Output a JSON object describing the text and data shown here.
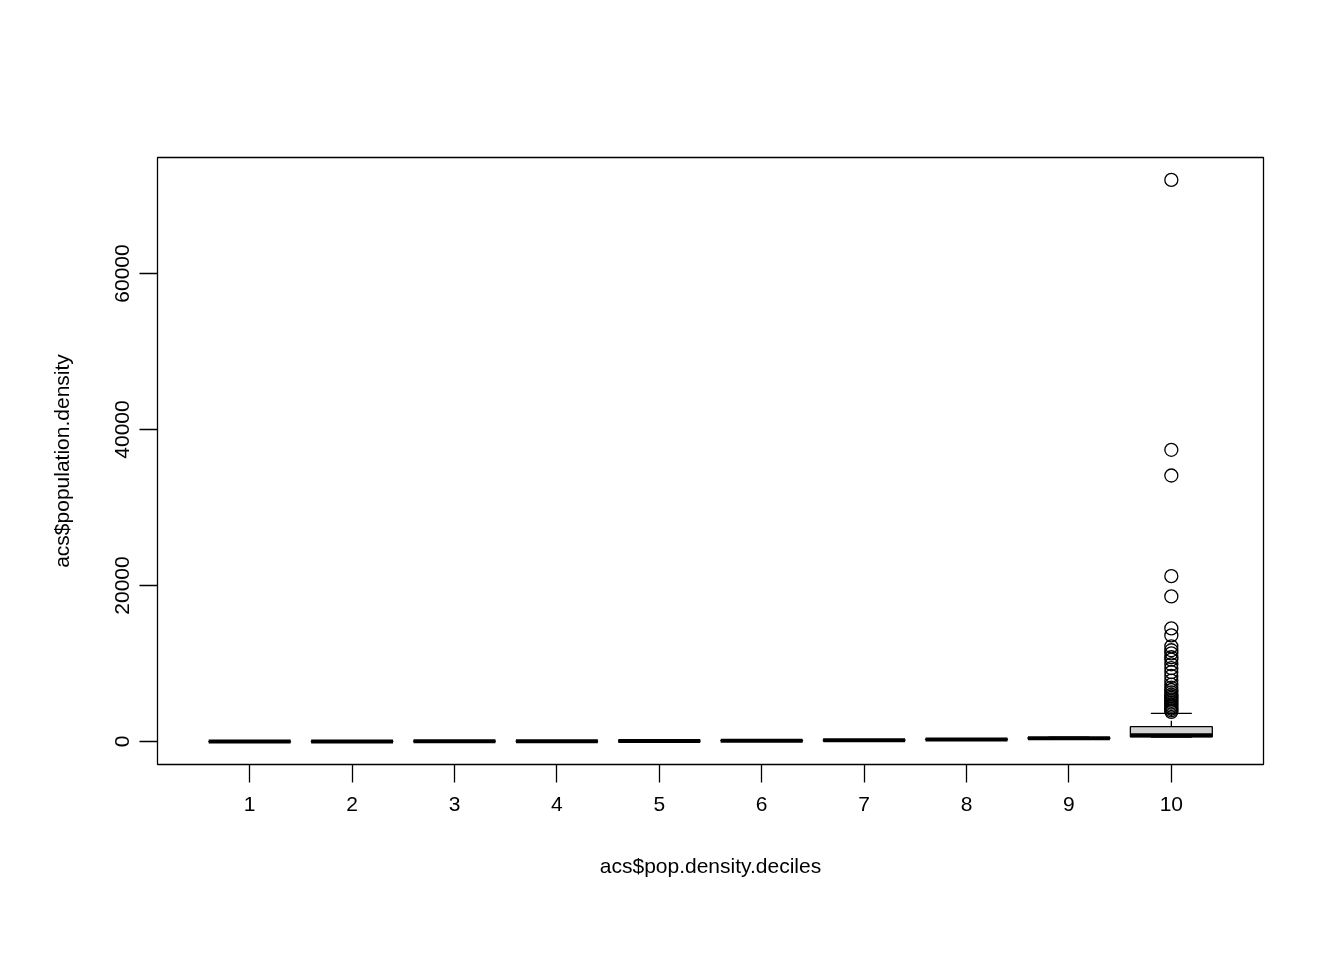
{
  "chart_data": {
    "type": "box",
    "xlabel": "acs$pop.density.deciles",
    "ylabel": "acs$population.density",
    "categories": [
      "1",
      "2",
      "3",
      "4",
      "5",
      "6",
      "7",
      "8",
      "9",
      "10"
    ],
    "boxes": [
      {
        "low": 0,
        "q1": 2,
        "median": 4,
        "q3": 7,
        "high": 10
      },
      {
        "low": 10,
        "q1": 12,
        "median": 14,
        "q3": 16,
        "high": 19
      },
      {
        "low": 19,
        "q1": 22,
        "median": 25,
        "q3": 29,
        "high": 33
      },
      {
        "low": 33,
        "q1": 37,
        "median": 42,
        "q3": 47,
        "high": 54
      },
      {
        "low": 54,
        "q1": 60,
        "median": 67,
        "q3": 75,
        "high": 85
      },
      {
        "low": 85,
        "q1": 95,
        "median": 105,
        "q3": 118,
        "high": 135
      },
      {
        "low": 135,
        "q1": 150,
        "median": 170,
        "q3": 190,
        "high": 215
      },
      {
        "low": 215,
        "q1": 240,
        "median": 270,
        "q3": 300,
        "high": 340
      },
      {
        "low": 340,
        "q1": 380,
        "median": 420,
        "q3": 480,
        "high": 560
      },
      {
        "low": 560,
        "q1": 600,
        "median": 800,
        "q3": 1900,
        "high": 3600,
        "outliers": [
          3800,
          4000,
          4200,
          4400,
          4600,
          4800,
          5000,
          5200,
          5400,
          5600,
          5800,
          6000,
          6300,
          6600,
          6900,
          7300,
          7800,
          8400,
          8900,
          9400,
          9900,
          10500,
          10800,
          11300,
          11700,
          12200,
          13600,
          14500,
          18600,
          21200,
          34100,
          37400,
          72000
        ]
      }
    ],
    "ylim": [
      -2949,
      74872
    ],
    "yticks": [
      0,
      20000,
      40000,
      60000
    ],
    "grid": false
  }
}
